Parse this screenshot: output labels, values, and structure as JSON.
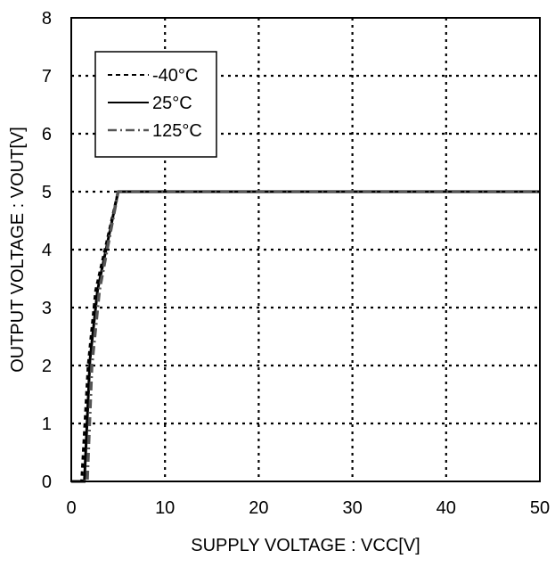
{
  "chart_data": {
    "type": "line",
    "title": "",
    "xlabel": "SUPPLY VOLTAGE : VCC[V]",
    "ylabel": "OUTPUT VOLTAGE : VOUT[V]",
    "xlim": [
      0,
      50
    ],
    "ylim": [
      0,
      8
    ],
    "xticks": [
      0,
      10,
      20,
      30,
      40,
      50
    ],
    "yticks": [
      0,
      1,
      2,
      3,
      4,
      5,
      6,
      7,
      8
    ],
    "xtick_labels": [
      "0",
      "10",
      "20",
      "30",
      "40",
      "50"
    ],
    "ytick_labels": [
      "0",
      "1",
      "2",
      "3",
      "4",
      "5",
      "6",
      "7",
      "8"
    ],
    "grid": true,
    "grid_style": "dotted",
    "legend_position": "top-left",
    "series": [
      {
        "name": "-40°C",
        "line_style": "dashed",
        "color": "#000000",
        "x": [
          0,
          1.1,
          1.8,
          2.6,
          5.0,
          50
        ],
        "y": [
          0,
          0,
          2.0,
          3.3,
          5.0,
          5.0
        ]
      },
      {
        "name": "25°C",
        "line_style": "solid",
        "color": "#000000",
        "x": [
          0,
          1.4,
          2.0,
          2.8,
          5.0,
          50
        ],
        "y": [
          0,
          0,
          2.1,
          3.3,
          5.0,
          5.0
        ]
      },
      {
        "name": "125°C",
        "line_style": "dash-dot",
        "color": "#555555",
        "x": [
          0,
          1.7,
          2.2,
          3.0,
          5.0,
          50
        ],
        "y": [
          0,
          0,
          2.0,
          3.3,
          5.0,
          5.0
        ]
      }
    ]
  }
}
